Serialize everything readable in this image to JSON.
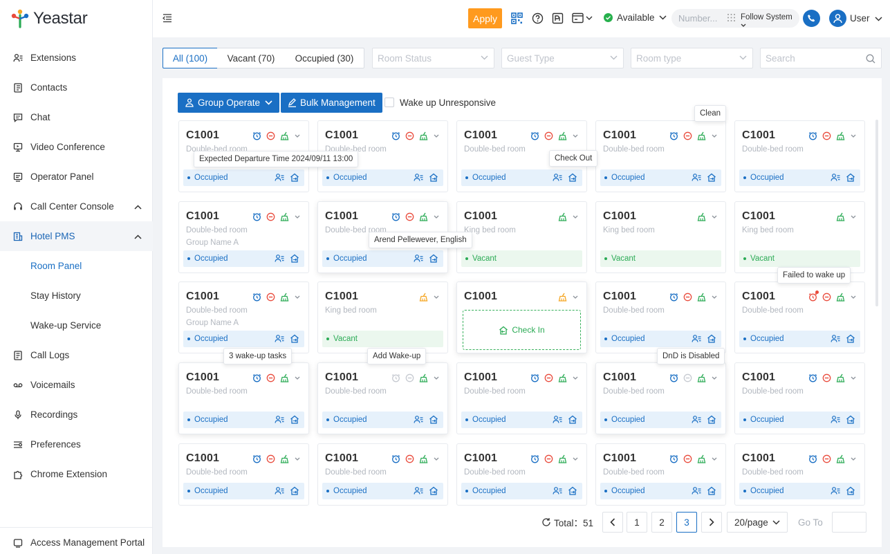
{
  "app": {
    "brand": "Yeastar"
  },
  "sidebar": {
    "items": [
      {
        "label": "Extensions",
        "icon": "user-list-icon"
      },
      {
        "label": "Contacts",
        "icon": "contacts-book-icon"
      },
      {
        "label": "Chat",
        "icon": "chat-bubble-icon"
      },
      {
        "label": "Video Conference",
        "icon": "monitor-icon"
      },
      {
        "label": "Operator Panel",
        "icon": "panel-icon"
      },
      {
        "label": "Call Center Console",
        "icon": "headset-icon"
      },
      {
        "label": "Hotel PMS",
        "icon": "hotel-icon"
      },
      {
        "label": "Room Panel"
      },
      {
        "label": "Stay History"
      },
      {
        "label": "Wake-up Service"
      },
      {
        "label": "Call Logs",
        "icon": "call-log-icon"
      },
      {
        "label": "Voicemails",
        "icon": "voicemail-icon"
      },
      {
        "label": "Recordings",
        "icon": "microphone-icon"
      },
      {
        "label": "Preferences",
        "icon": "sliders-icon"
      },
      {
        "label": "Chrome Extension",
        "icon": "puzzle-icon"
      }
    ],
    "footer": {
      "label": "Access Management Portal",
      "icon": "portal-icon"
    }
  },
  "topbar": {
    "apply": "Apply",
    "availability": "Available",
    "number_placeholder": "Number...",
    "follow": "Follow System",
    "user": "User"
  },
  "filters": {
    "tabs": [
      "All (100)",
      "Vacant (70)",
      "Occupied (30)"
    ],
    "room_status": "Room Status",
    "guest_type": "Guest Type",
    "room_type": "Room type",
    "search": "Search"
  },
  "toolbar": {
    "group_operate": "Group Operate",
    "bulk": "Bulk Management",
    "wake_label": "Wake up Unresponsive"
  },
  "cards": [
    {
      "room": "C1001",
      "type": "Double-bed room",
      "group": "",
      "status": "Occupied",
      "alarm": "blue",
      "dnd": "red",
      "clean": "green",
      "guest": true
    },
    {
      "room": "C1001",
      "type": "Double-bed room",
      "group": "",
      "status": "Occupied",
      "alarm": "blue",
      "dnd": "red",
      "clean": "green",
      "guest": true
    },
    {
      "room": "C1001",
      "type": "Double-bed room",
      "group": "",
      "status": "Occupied",
      "alarm": "blue",
      "dnd": "red",
      "clean": "green",
      "guest": true
    },
    {
      "room": "C1001",
      "type": "Double-bed room",
      "group": "",
      "status": "Occupied",
      "alarm": "blue",
      "dnd": "red",
      "clean": "green",
      "guest": true
    },
    {
      "room": "C1001",
      "type": "Double-bed room",
      "group": "",
      "status": "Occupied",
      "alarm": "blue",
      "dnd": "red",
      "clean": "green",
      "guest": true
    },
    {
      "room": "C1001",
      "type": "Double-bed room",
      "group": "Group Name A",
      "status": "Occupied",
      "alarm": "blue",
      "dnd": "red",
      "clean": "green",
      "guest": true
    },
    {
      "room": "C1001",
      "type": "Double-bed room",
      "group": "",
      "status": "Occupied",
      "alarm": "blue",
      "dnd": "red",
      "clean": "green",
      "guest": true
    },
    {
      "room": "C1001",
      "type": "King bed room",
      "group": "",
      "status": "Vacant",
      "alarm": "",
      "dnd": "",
      "clean": "green",
      "guest": false
    },
    {
      "room": "C1001",
      "type": "King bed room",
      "group": "",
      "status": "Vacant",
      "alarm": "",
      "dnd": "",
      "clean": "green",
      "guest": false
    },
    {
      "room": "C1001",
      "type": "King bed room",
      "group": "",
      "status": "Vacant",
      "alarm": "",
      "dnd": "",
      "clean": "green",
      "guest": false
    },
    {
      "room": "C1001",
      "type": "Double-bed room",
      "group": "Group Name A",
      "status": "Occupied",
      "alarm": "blue",
      "dnd": "red",
      "clean": "green",
      "guest": true
    },
    {
      "room": "C1001",
      "type": "King bed room",
      "group": "",
      "status": "Vacant",
      "alarm": "",
      "dnd": "",
      "clean": "orange",
      "guest": false
    },
    {
      "room": "C1001",
      "type": "",
      "group": "",
      "status": "checkin",
      "alarm": "",
      "dnd": "",
      "clean": "orange",
      "guest": false
    },
    {
      "room": "C1001",
      "type": "Double-bed room",
      "group": "",
      "status": "Occupied",
      "alarm": "blue",
      "dnd": "red",
      "clean": "green",
      "guest": true
    },
    {
      "room": "C1001",
      "type": "Double-bed room",
      "group": "",
      "status": "Occupied",
      "alarm": "red",
      "dnd": "red",
      "clean": "green",
      "guest": true
    },
    {
      "room": "C1001",
      "type": "Double-bed room",
      "group": "",
      "status": "Occupied",
      "alarm": "blue",
      "dnd": "red",
      "clean": "green",
      "guest": true
    },
    {
      "room": "C1001",
      "type": "Double-bed room",
      "group": "",
      "status": "Occupied",
      "alarm": "grey",
      "dnd": "grey",
      "clean": "green",
      "guest": true
    },
    {
      "room": "C1001",
      "type": "Double-bed room",
      "group": "",
      "status": "Occupied",
      "alarm": "blue",
      "dnd": "red",
      "clean": "green",
      "guest": true
    },
    {
      "room": "C1001",
      "type": "Double-bed room",
      "group": "",
      "status": "Occupied",
      "alarm": "blue",
      "dnd": "grey",
      "clean": "green",
      "guest": true
    },
    {
      "room": "C1001",
      "type": "Double-bed room",
      "group": "",
      "status": "Occupied",
      "alarm": "blue",
      "dnd": "red",
      "clean": "green",
      "guest": true
    },
    {
      "room": "C1001",
      "type": "Double-bed room",
      "group": "",
      "status": "Occupied",
      "alarm": "blue",
      "dnd": "red",
      "clean": "green",
      "guest": true
    },
    {
      "room": "C1001",
      "type": "Double-bed room",
      "group": "",
      "status": "Occupied",
      "alarm": "blue",
      "dnd": "red",
      "clean": "green",
      "guest": true
    },
    {
      "room": "C1001",
      "type": "Double-bed room",
      "group": "",
      "status": "Occupied",
      "alarm": "blue",
      "dnd": "red",
      "clean": "green",
      "guest": true
    },
    {
      "room": "C1001",
      "type": "Double-bed room",
      "group": "",
      "status": "Occupied",
      "alarm": "blue",
      "dnd": "red",
      "clean": "green",
      "guest": true
    },
    {
      "room": "C1001",
      "type": "Double-bed room",
      "group": "",
      "status": "Occupied",
      "alarm": "blue",
      "dnd": "red",
      "clean": "green",
      "guest": true
    }
  ],
  "checkin_label": "Check In",
  "tooltips": {
    "clean": "Clean",
    "departure": "Expected Departure Time 2024/09/11 13:00",
    "checkout": "Check Out",
    "guest": "Arend Pellewever, English",
    "failed": "Failed to wake up",
    "tasks": "3 wake-up tasks",
    "add_wake": "Add Wake-up",
    "dnd_disabled": "DnD is Disabled"
  },
  "pagination": {
    "total": "Total：51",
    "pages": [
      "1",
      "2",
      "3"
    ],
    "current": "3",
    "page_size": "20/page",
    "goto": "Go To"
  }
}
